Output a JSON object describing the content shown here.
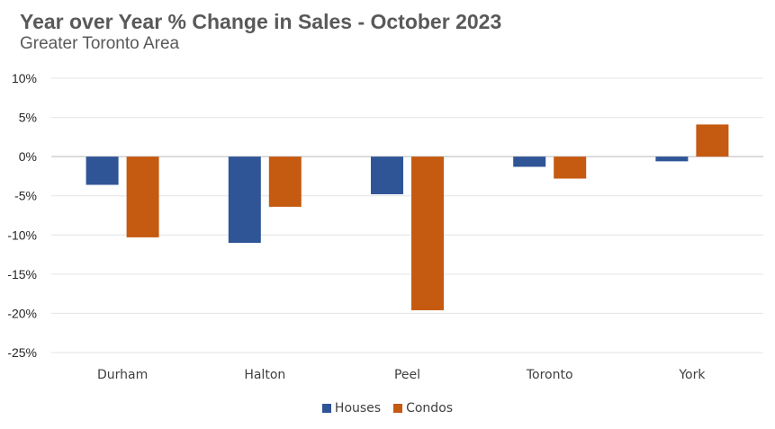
{
  "chart_data": {
    "type": "bar",
    "title": "Year over Year % Change in Sales - October 2023",
    "subtitle": "Greater Toronto Area",
    "xlabel": "",
    "ylabel": "",
    "categories": [
      "Durham",
      "Halton",
      "Peel",
      "Toronto",
      "York"
    ],
    "series": [
      {
        "name": "Houses",
        "color": "#2F5597",
        "values": [
          -3.6,
          -11.0,
          -4.8,
          -1.3,
          -0.6
        ]
      },
      {
        "name": "Condos",
        "color": "#C55A11",
        "values": [
          -10.3,
          -6.4,
          -19.6,
          -2.8,
          4.1
        ]
      }
    ],
    "ylim": [
      -25,
      10
    ],
    "yticks": [
      10,
      5,
      0,
      -5,
      -10,
      -15,
      -20,
      -25
    ],
    "ytick_labels": [
      "10%",
      "5%",
      "0%",
      "-5%",
      "-10%",
      "-15%",
      "-20%",
      "-25%"
    ],
    "grid": true,
    "legend_position": "bottom"
  }
}
